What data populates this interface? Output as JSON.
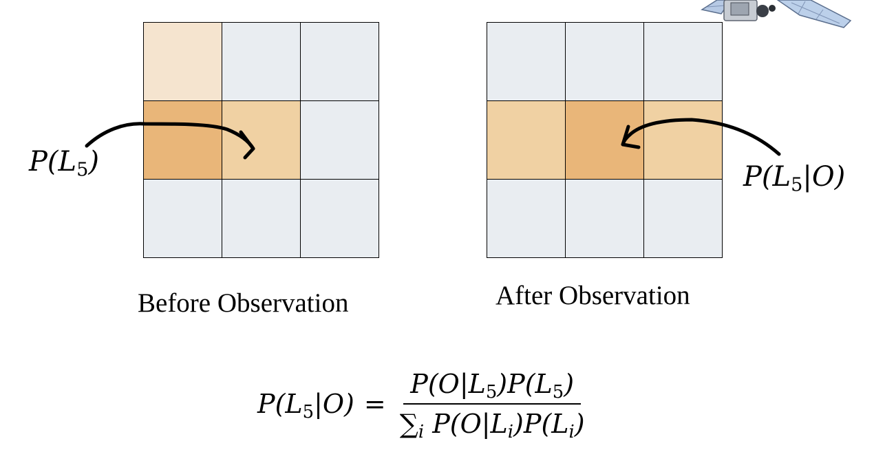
{
  "panels": [
    {
      "caption": "Before Observation",
      "label": {
        "base": "P(L",
        "sub": "5",
        "close": ")"
      },
      "cells": [
        "light",
        "blank",
        "blank",
        "dark",
        "mid",
        "blank",
        "blank",
        "blank",
        "blank"
      ]
    },
    {
      "caption": "After Observation",
      "label": {
        "base": "P(L",
        "sub": "5",
        "close": "|O)"
      },
      "cells": [
        "blank",
        "blank",
        "blank",
        "mid",
        "dark",
        "mid",
        "blank",
        "blank",
        "blank"
      ]
    }
  ],
  "formula": {
    "lhs": {
      "base": "P(L",
      "sub": "5",
      "close": "|O)"
    },
    "equals": "=",
    "numerator": {
      "p1": "P(O|L",
      "s1": "5",
      "p2": ")P(L",
      "s2": "5",
      "p3": ")"
    },
    "denominator": {
      "sum": "∑",
      "sum_sub": "i",
      "p1": " P(O|L",
      "s1": "i",
      "p2": ")P(L",
      "s2": "i",
      "p3": ")"
    }
  },
  "colors": {
    "blank": "#e9edf1",
    "light": "#f5e4cf",
    "mid": "#f0d1a3",
    "dark": "#e9b679"
  },
  "icons": [
    "satellite-icon"
  ]
}
